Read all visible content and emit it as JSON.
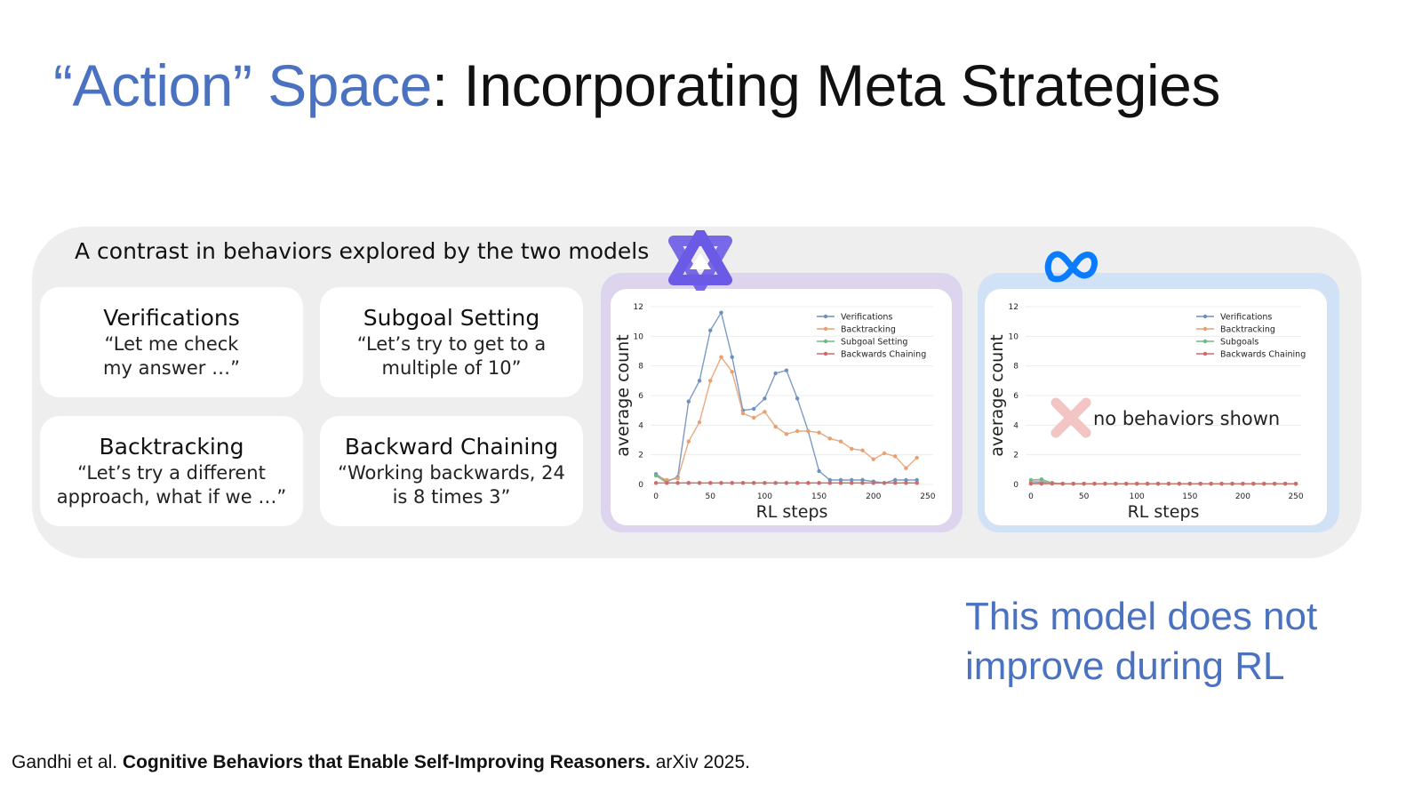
{
  "slide": {
    "title_accent": "“Action” Space",
    "title_rest": ": Incorporating Meta Strategies",
    "panel_heading": "A contrast in behaviors explored by the two models",
    "cards": [
      {
        "title": "Verifications",
        "quote": "“Let me check my answer …”"
      },
      {
        "title": "Subgoal Setting",
        "quote": "“Let’s try to get to a multiple of 10”"
      },
      {
        "title": "Backtracking",
        "quote": "“Let’s try a different approach, what if we …”"
      },
      {
        "title": "Backward Chaining",
        "quote": "“Working backwards, 24 is 8 times 3”"
      }
    ],
    "note": "This model does not improve during RL",
    "citation": {
      "authors": "Gandhi et al. ",
      "paper": "Cognitive Behaviors that Enable Self-Improving Reasoners.",
      "venue": " arXiv 2025."
    },
    "icons": [
      "qwen-logo-icon",
      "meta-logo-icon",
      "cross-icon"
    ],
    "colors": {
      "accent": "#4a72c0",
      "qwen_frame": "#ddd4ee",
      "meta_frame": "#d2e2f6",
      "qwen_logo": "#6a5ae6",
      "meta_logo": "#0a7cff",
      "cross": "#f2c4c4"
    }
  },
  "chart_data": [
    {
      "type": "line",
      "xlabel": "RL steps",
      "ylabel": "average count",
      "xlim": [
        -5,
        255
      ],
      "ylim": [
        0,
        12
      ],
      "xticks": [
        0,
        50,
        100,
        150,
        200,
        250
      ],
      "yticks": [
        0,
        2,
        4,
        6,
        8,
        10,
        12
      ],
      "grid": true,
      "legend": "top-right",
      "x": [
        0,
        10,
        20,
        30,
        40,
        50,
        60,
        70,
        80,
        90,
        100,
        110,
        120,
        130,
        140,
        150,
        160,
        170,
        180,
        190,
        200,
        210,
        220,
        230,
        240
      ],
      "series": [
        {
          "name": "Verifications",
          "color": "#6f8fbf",
          "values": [
            0.7,
            0.2,
            0.5,
            5.6,
            7.0,
            10.4,
            11.6,
            8.6,
            5.0,
            5.1,
            5.8,
            7.5,
            7.7,
            5.8,
            3.6,
            0.9,
            0.3,
            0.3,
            0.3,
            0.3,
            0.2,
            0.1,
            0.3,
            0.3,
            0.3
          ]
        },
        {
          "name": "Backtracking",
          "color": "#e8a070",
          "values": [
            0.6,
            0.3,
            0.4,
            2.9,
            4.2,
            7.0,
            8.6,
            7.6,
            4.8,
            4.5,
            4.9,
            3.9,
            3.4,
            3.6,
            3.6,
            3.5,
            3.1,
            2.9,
            2.4,
            2.3,
            1.7,
            2.1,
            1.9,
            1.1,
            1.8
          ]
        },
        {
          "name": "Subgoal Setting",
          "color": "#6fb88a",
          "values": [
            0.6,
            0.1,
            0.1,
            0.1,
            0.1,
            0.1,
            0.1,
            0.1,
            0.1,
            0.1,
            0.1,
            0.1,
            0.1,
            0.1,
            0.1,
            0.1,
            0.1,
            0.1,
            0.1,
            0.1,
            0.1,
            0.1,
            0.1,
            0.1,
            0.1
          ]
        },
        {
          "name": "Backwards Chaining",
          "color": "#d06a6a",
          "values": [
            0.1,
            0.1,
            0.1,
            0.1,
            0.1,
            0.1,
            0.1,
            0.1,
            0.1,
            0.1,
            0.1,
            0.1,
            0.1,
            0.1,
            0.1,
            0.1,
            0.1,
            0.1,
            0.1,
            0.1,
            0.1,
            0.1,
            0.1,
            0.1,
            0.1
          ]
        }
      ]
    },
    {
      "type": "line",
      "xlabel": "RL steps",
      "ylabel": "average count",
      "xlim": [
        -5,
        255
      ],
      "ylim": [
        0,
        12
      ],
      "xticks": [
        0,
        50,
        100,
        150,
        200,
        250
      ],
      "yticks": [
        0,
        2,
        4,
        6,
        8,
        10,
        12
      ],
      "grid": true,
      "legend": "top-right",
      "annotation": "no behaviors shown",
      "x": [
        0,
        10,
        20,
        30,
        40,
        50,
        60,
        70,
        80,
        90,
        100,
        110,
        120,
        130,
        140,
        150,
        160,
        170,
        180,
        190,
        200,
        210,
        220,
        230,
        240,
        250
      ],
      "series": [
        {
          "name": "Verifications",
          "color": "#6f8fbf",
          "values": [
            0.1,
            0.15,
            0.1,
            0.05,
            0.05,
            0.05,
            0.05,
            0.05,
            0.05,
            0.05,
            0.05,
            0.05,
            0.05,
            0.05,
            0.05,
            0.05,
            0.05,
            0.05,
            0.05,
            0.05,
            0.05,
            0.05,
            0.05,
            0.05,
            0.05,
            0.05
          ]
        },
        {
          "name": "Backtracking",
          "color": "#e8a070",
          "values": [
            0.2,
            0.25,
            0.1,
            0.05,
            0.05,
            0.05,
            0.05,
            0.05,
            0.05,
            0.05,
            0.05,
            0.05,
            0.05,
            0.05,
            0.05,
            0.05,
            0.05,
            0.05,
            0.05,
            0.05,
            0.05,
            0.05,
            0.05,
            0.05,
            0.05,
            0.05
          ]
        },
        {
          "name": "Subgoals",
          "color": "#6fb88a",
          "values": [
            0.3,
            0.35,
            0.1,
            0.05,
            0.05,
            0.05,
            0.05,
            0.05,
            0.05,
            0.05,
            0.05,
            0.05,
            0.05,
            0.05,
            0.05,
            0.05,
            0.05,
            0.05,
            0.05,
            0.05,
            0.05,
            0.05,
            0.05,
            0.05,
            0.05,
            0.05
          ]
        },
        {
          "name": "Backwards Chaining",
          "color": "#d06a6a",
          "values": [
            0.05,
            0.05,
            0.05,
            0.05,
            0.05,
            0.05,
            0.05,
            0.05,
            0.05,
            0.05,
            0.05,
            0.05,
            0.05,
            0.05,
            0.05,
            0.05,
            0.05,
            0.05,
            0.05,
            0.05,
            0.05,
            0.05,
            0.05,
            0.05,
            0.05,
            0.05
          ]
        }
      ]
    }
  ]
}
